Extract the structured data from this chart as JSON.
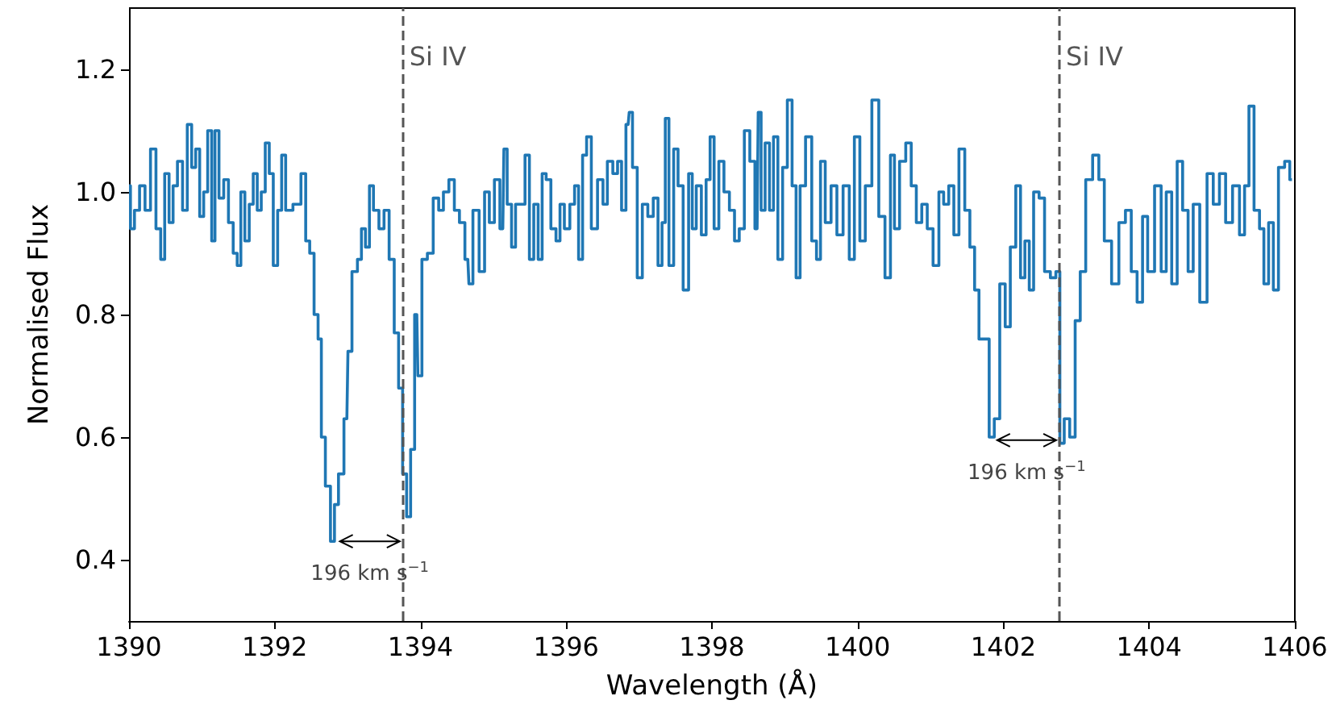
{
  "chart_data": {
    "type": "step",
    "xlabel": "Wavelength (Å)",
    "ylabel": "Normalised Flux",
    "xlim": [
      1390,
      1406
    ],
    "xticks": [
      1390,
      1392,
      1394,
      1396,
      1398,
      1400,
      1402,
      1404,
      1406
    ],
    "ylim": [
      0.3,
      1.3
    ],
    "yticks": [
      0.4,
      0.6,
      0.8,
      {
        "value": 1,
        "label": "1.0"
      },
      1.2
    ],
    "grid": false,
    "marker": "none",
    "line_style": "solid",
    "series": [
      {
        "color": "#1f77b4",
        "x": [
          1390.0,
          1390.04,
          1390.11,
          1390.18,
          1390.26,
          1390.33,
          1390.41,
          1390.46,
          1390.52,
          1390.58,
          1390.63,
          1390.7,
          1390.77,
          1390.83,
          1390.89,
          1390.94,
          1391.0,
          1391.05,
          1391.11,
          1391.16,
          1391.2,
          1391.27,
          1391.33,
          1391.4,
          1391.46,
          1391.51,
          1391.56,
          1391.62,
          1391.68,
          1391.73,
          1391.79,
          1391.84,
          1391.9,
          1391.95,
          1392.01,
          1392.07,
          1392.12,
          1392.18,
          1392.32,
          1392.4,
          1392.45,
          1392.51,
          1392.57,
          1392.62,
          1392.66,
          1392.73,
          1392.8,
          1392.84,
          1392.91,
          1392.99,
          1393.02,
          1393.1,
          1393.17,
          1393.21,
          1393.28,
          1393.32,
          1393.39,
          1393.47,
          1393.53,
          1393.61,
          1393.67,
          1393.73,
          1393.78,
          1393.84,
          1393.89,
          1393.95,
          1393.98,
          1394.06,
          1394.13,
          1394.22,
          1394.28,
          1394.35,
          1394.43,
          1394.5,
          1394.57,
          1394.65,
          1394.68,
          1394.76,
          1394.85,
          1394.91,
          1394.98,
          1395.05,
          1395.13,
          1395.16,
          1395.22,
          1395.28,
          1395.33,
          1395.4,
          1395.47,
          1395.52,
          1395.59,
          1395.64,
          1395.7,
          1395.75,
          1395.83,
          1395.89,
          1395.94,
          1396.01,
          1396.09,
          1396.14,
          1396.2,
          1396.25,
          1396.31,
          1396.38,
          1396.48,
          1396.53,
          1396.6,
          1396.68,
          1396.73,
          1396.79,
          1396.85,
          1396.88,
          1396.94,
          1397.01,
          1397.08,
          1397.16,
          1397.23,
          1397.29,
          1397.34,
          1397.38,
          1397.44,
          1397.51,
          1397.56,
          1397.65,
          1397.71,
          1397.75,
          1397.82,
          1397.89,
          1397.95,
          1398.0,
          1398.06,
          1398.13,
          1398.2,
          1398.28,
          1398.34,
          1398.41,
          1398.48,
          1398.56,
          1398.62,
          1398.65,
          1398.7,
          1398.76,
          1398.82,
          1398.87,
          1398.94,
          1399.0,
          1399.07,
          1399.13,
          1399.18,
          1399.24,
          1399.33,
          1399.41,
          1399.46,
          1399.52,
          1399.59,
          1399.68,
          1399.75,
          1399.85,
          1399.92,
          1399.99,
          1400.07,
          1400.14,
          1400.25,
          1400.33,
          1400.42,
          1400.48,
          1400.53,
          1400.62,
          1400.7,
          1400.77,
          1400.84,
          1400.92,
          1400.99,
          1401.08,
          1401.15,
          1401.21,
          1401.29,
          1401.35,
          1401.43,
          1401.51,
          1401.57,
          1401.64,
          1401.69,
          1401.77,
          1401.84,
          1401.91,
          1401.99,
          1402.06,
          1402.13,
          1402.21,
          1402.26,
          1402.33,
          1402.38,
          1402.45,
          1402.53,
          1402.6,
          1402.69,
          1402.75,
          1402.8,
          1402.87,
          1402.95,
          1403.02,
          1403.09,
          1403.17,
          1403.28,
          1403.34,
          1403.43,
          1403.54,
          1403.63,
          1403.72,
          1403.79,
          1403.88,
          1403.94,
          1404.02,
          1404.13,
          1404.2,
          1404.27,
          1404.35,
          1404.42,
          1404.5,
          1404.57,
          1404.64,
          1404.75,
          1404.84,
          1404.92,
          1405.01,
          1405.09,
          1405.2,
          1405.28,
          1405.34,
          1405.4,
          1405.48,
          1405.55,
          1405.6,
          1405.68,
          1405.73,
          1405.82,
          1405.9,
          1405.96
        ],
        "values": [
          1.01,
          0.94,
          0.97,
          1.01,
          0.97,
          1.07,
          0.94,
          0.89,
          1.03,
          0.95,
          1.01,
          1.05,
          0.97,
          1.11,
          1.04,
          1.07,
          0.96,
          1.0,
          1.1,
          0.92,
          1.1,
          0.99,
          1.02,
          0.95,
          0.9,
          0.88,
          1.0,
          0.92,
          0.98,
          1.03,
          0.97,
          1.0,
          1.08,
          1.03,
          0.88,
          0.97,
          1.06,
          0.97,
          0.98,
          1.03,
          0.92,
          0.9,
          0.8,
          0.76,
          0.6,
          0.52,
          0.43,
          0.49,
          0.54,
          0.63,
          0.74,
          0.87,
          0.89,
          0.94,
          0.91,
          1.01,
          0.97,
          0.94,
          0.97,
          0.89,
          0.77,
          0.68,
          0.54,
          0.47,
          0.58,
          0.8,
          0.7,
          0.89,
          0.9,
          0.99,
          0.97,
          1.0,
          1.02,
          0.97,
          0.95,
          0.89,
          0.85,
          0.97,
          0.87,
          1.0,
          0.95,
          1.02,
          0.94,
          1.07,
          0.98,
          0.91,
          0.98,
          0.98,
          1.06,
          0.89,
          0.98,
          0.89,
          1.03,
          1.02,
          0.94,
          0.92,
          0.98,
          0.94,
          0.98,
          1.01,
          0.89,
          1.06,
          1.09,
          0.94,
          1.02,
          0.98,
          1.05,
          1.03,
          1.05,
          0.97,
          1.11,
          1.13,
          1.04,
          0.86,
          0.98,
          0.96,
          0.99,
          0.88,
          0.95,
          1.12,
          0.88,
          1.07,
          1.01,
          0.84,
          1.03,
          0.94,
          1.01,
          0.93,
          1.02,
          1.09,
          0.94,
          1.05,
          1.0,
          0.97,
          0.92,
          0.94,
          1.1,
          1.05,
          0.94,
          1.13,
          0.97,
          1.08,
          0.97,
          1.09,
          0.89,
          1.04,
          1.15,
          1.01,
          0.86,
          1.01,
          1.09,
          0.92,
          0.89,
          1.05,
          0.95,
          1.01,
          0.93,
          1.01,
          0.89,
          1.09,
          0.92,
          1.01,
          1.15,
          0.96,
          0.86,
          1.06,
          0.94,
          1.05,
          1.08,
          1.01,
          0.95,
          0.98,
          0.94,
          0.88,
          1.0,
          0.98,
          1.01,
          0.93,
          1.07,
          0.97,
          0.91,
          0.84,
          0.76,
          0.76,
          0.6,
          0.63,
          0.85,
          0.78,
          0.91,
          1.01,
          0.86,
          0.92,
          0.84,
          1.0,
          0.99,
          0.87,
          0.86,
          0.87,
          0.59,
          0.63,
          0.6,
          0.79,
          0.87,
          1.02,
          1.06,
          1.02,
          0.92,
          0.85,
          0.95,
          0.97,
          0.87,
          0.82,
          0.96,
          0.87,
          1.01,
          0.87,
          1.0,
          0.85,
          1.05,
          0.97,
          0.87,
          0.98,
          0.82,
          1.03,
          0.98,
          1.03,
          0.95,
          1.01,
          0.93,
          1.01,
          1.14,
          0.97,
          0.94,
          0.85,
          0.95,
          0.84,
          1.04,
          1.05,
          1.02
        ]
      }
    ],
    "ref_lines": [
      {
        "axis": "x",
        "value": 1393.76,
        "label": "Si IV",
        "color": "#555555",
        "line_style": "dashed"
      },
      {
        "axis": "x",
        "value": 1402.77,
        "label": "Si IV",
        "color": "#555555",
        "line_style": "dashed"
      }
    ],
    "annotations": [
      {
        "text": "196 km s$^{−1}$",
        "x": 1392.85,
        "y": 0.43
      },
      {
        "text": "196 km s$^{−1}$",
        "x": 1401.87,
        "y": 0.595
      }
    ]
  }
}
